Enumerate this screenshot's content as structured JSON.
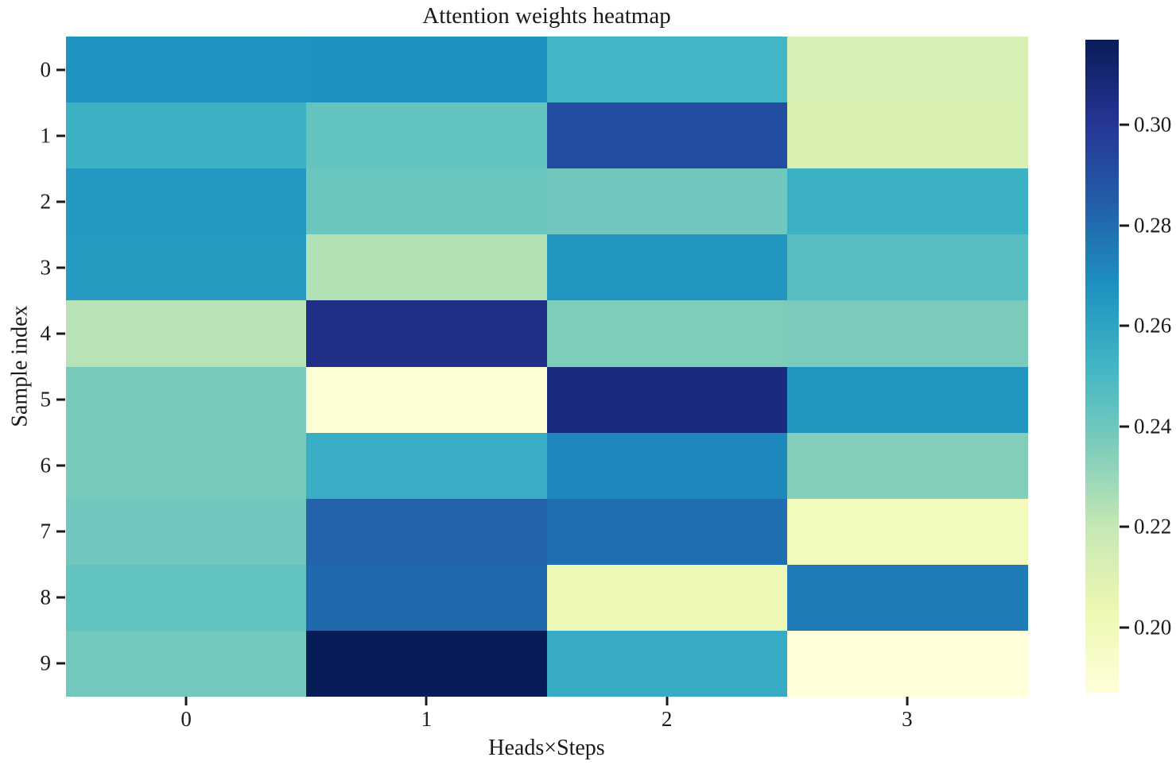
{
  "title": "Attention weights heatmap",
  "colors": {
    "background": "#ffffff",
    "text": "#1a1a1a",
    "tick": "#1a1a1a"
  },
  "chart_data": {
    "type": "heatmap",
    "title": "Attention weights heatmap",
    "xlabel": "Heads×Steps",
    "ylabel": "Sample index",
    "x_tick_labels": [
      "0",
      "1",
      "2",
      "3"
    ],
    "y_tick_labels": [
      "0",
      "1",
      "2",
      "3",
      "4",
      "5",
      "6",
      "7",
      "8",
      "9"
    ],
    "rows": 10,
    "cols": 4,
    "values": [
      [
        0.267,
        0.268,
        0.252,
        0.213
      ],
      [
        0.254,
        0.243,
        0.291,
        0.212
      ],
      [
        0.265,
        0.241,
        0.24,
        0.254
      ],
      [
        0.264,
        0.224,
        0.266,
        0.246
      ],
      [
        0.223,
        0.304,
        0.236,
        0.237
      ],
      [
        0.238,
        0.189,
        0.307,
        0.266
      ],
      [
        0.238,
        0.256,
        0.271,
        0.235
      ],
      [
        0.24,
        0.283,
        0.279,
        0.198
      ],
      [
        0.243,
        0.281,
        0.201,
        0.275
      ],
      [
        0.239,
        0.317,
        0.257,
        0.187
      ]
    ],
    "vmin": 0.187,
    "vmax": 0.317,
    "colormap": "YlGnBu",
    "colormap_stops": [
      "#ffffd9",
      "#edf8b1",
      "#c7e9b4",
      "#7fcdbb",
      "#41b6c4",
      "#1d91c0",
      "#225ea8",
      "#253494",
      "#081d58"
    ],
    "colorbar": {
      "tick_values": [
        0.3,
        0.28,
        0.26,
        0.24,
        0.22,
        0.2
      ],
      "tick_labels": [
        "0.30",
        "0.28",
        "0.26",
        "0.24",
        "0.22",
        "0.20"
      ],
      "position": "right",
      "orientation": "vertical"
    },
    "grid": false,
    "legend": false
  }
}
